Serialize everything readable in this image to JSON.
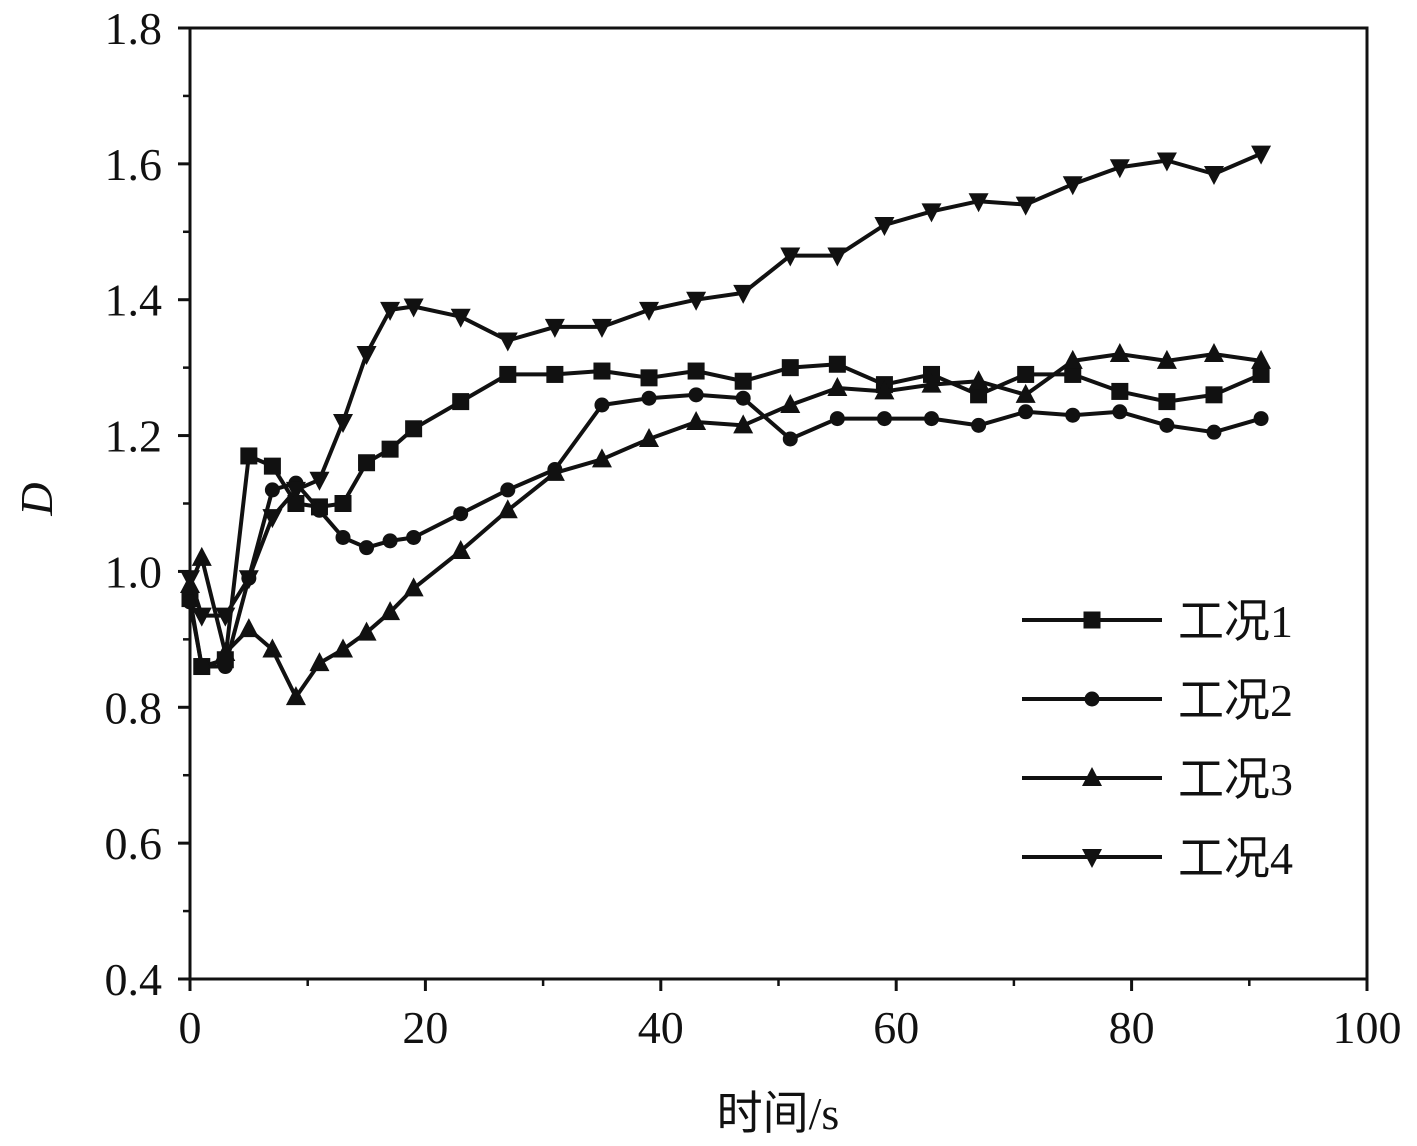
{
  "chart_data": {
    "type": "line",
    "xlabel": "时间/s",
    "ylabel": "D",
    "xlim": [
      0,
      100
    ],
    "ylim": [
      0.4,
      1.8
    ],
    "xticks": [
      "0",
      "20",
      "40",
      "60",
      "80",
      "100"
    ],
    "yticks": [
      "0.4",
      "0.6",
      "0.8",
      "1.0",
      "1.2",
      "1.4",
      "1.6",
      "1.8"
    ],
    "grid": false,
    "legend_position": "bottom-right",
    "series": [
      {
        "name": "工况1",
        "marker": "square",
        "x": [
          0,
          1,
          3,
          5,
          7,
          9,
          11,
          13,
          15,
          17,
          19,
          23,
          27,
          31,
          35,
          39,
          43,
          47,
          51,
          55,
          59,
          63,
          67,
          71,
          75,
          79,
          83,
          87,
          91
        ],
        "y": [
          0.96,
          0.86,
          0.87,
          1.17,
          1.155,
          1.1,
          1.095,
          1.1,
          1.16,
          1.18,
          1.21,
          1.25,
          1.29,
          1.29,
          1.295,
          1.285,
          1.295,
          1.28,
          1.3,
          1.305,
          1.275,
          1.29,
          1.26,
          1.29,
          1.29,
          1.265,
          1.25,
          1.26,
          1.29
        ]
      },
      {
        "name": "工况2",
        "marker": "circle",
        "x": [
          0,
          1,
          3,
          5,
          7,
          9,
          11,
          13,
          15,
          17,
          19,
          23,
          27,
          31,
          35,
          39,
          43,
          47,
          51,
          55,
          59,
          63,
          67,
          71,
          75,
          79,
          83,
          87,
          91
        ],
        "y": [
          0.955,
          0.86,
          0.86,
          0.99,
          1.12,
          1.13,
          1.09,
          1.05,
          1.035,
          1.045,
          1.05,
          1.085,
          1.12,
          1.15,
          1.245,
          1.255,
          1.26,
          1.255,
          1.195,
          1.225,
          1.225,
          1.225,
          1.215,
          1.235,
          1.23,
          1.235,
          1.215,
          1.205,
          1.225
        ]
      },
      {
        "name": "工况3",
        "marker": "triangle-up",
        "x": [
          0,
          1,
          3,
          5,
          7,
          9,
          11,
          13,
          15,
          17,
          19,
          23,
          27,
          31,
          35,
          39,
          43,
          47,
          51,
          55,
          59,
          63,
          67,
          71,
          75,
          79,
          83,
          87,
          91
        ],
        "y": [
          0.98,
          1.02,
          0.88,
          0.915,
          0.885,
          0.815,
          0.865,
          0.885,
          0.91,
          0.94,
          0.975,
          1.03,
          1.09,
          1.145,
          1.165,
          1.195,
          1.22,
          1.215,
          1.245,
          1.27,
          1.265,
          1.275,
          1.28,
          1.26,
          1.31,
          1.32,
          1.31,
          1.32,
          1.31
        ]
      },
      {
        "name": "工况4",
        "marker": "triangle-down",
        "x": [
          0,
          1,
          3,
          5,
          7,
          9,
          11,
          13,
          15,
          17,
          19,
          23,
          27,
          31,
          35,
          39,
          43,
          47,
          51,
          55,
          59,
          63,
          67,
          71,
          75,
          79,
          83,
          87,
          91
        ],
        "y": [
          0.99,
          0.935,
          0.935,
          0.99,
          1.08,
          1.12,
          1.135,
          1.22,
          1.32,
          1.385,
          1.39,
          1.375,
          1.34,
          1.36,
          1.36,
          1.385,
          1.4,
          1.41,
          1.465,
          1.465,
          1.51,
          1.53,
          1.545,
          1.54,
          1.57,
          1.595,
          1.605,
          1.585,
          1.615
        ]
      }
    ]
  }
}
